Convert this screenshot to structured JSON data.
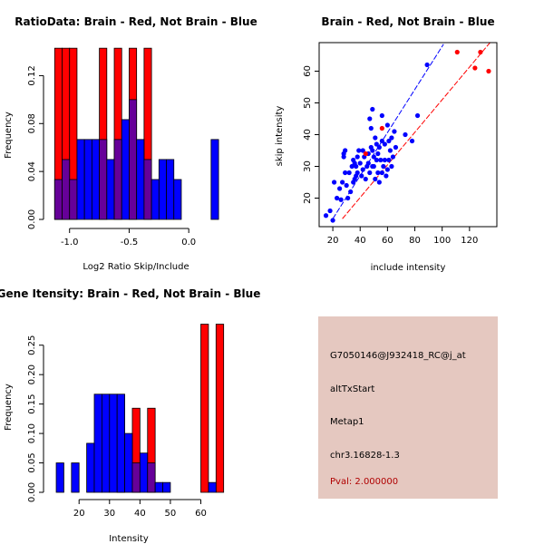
{
  "colors": {
    "red": "#ff0000",
    "blue": "#0000ff",
    "overlap": "#660099",
    "panel": "#e5c8c0",
    "pval": "#b00000"
  },
  "chart_data": [
    {
      "type": "histogram",
      "title": "RatioData: Brain - Red, Not Brain - Blue",
      "xlabel": "Log2 Ratio Skip/Include",
      "ylabel": "Frequency",
      "xlim": [
        -1.15,
        0.28
      ],
      "ylim": [
        0,
        0.14
      ],
      "xticks": [
        -1.0,
        -0.5,
        0.0
      ],
      "xtick_labels": [
        "-1.0",
        "-0.5",
        "0.0"
      ],
      "yticks": [
        0,
        0.04,
        0.08,
        0.12
      ],
      "ytick_labels": [
        "0.00",
        "0.04",
        "0.08",
        "0.12"
      ],
      "bin_width": 0.0625,
      "series": [
        {
          "name": "Brain",
          "color": "red",
          "bins": [
            {
              "x0": -1.125,
              "value": 0.1429
            },
            {
              "x0": -1.0625,
              "value": 0.1429
            },
            {
              "x0": -1.0,
              "value": 0.1429
            },
            {
              "x0": -0.75,
              "value": 0.1429
            },
            {
              "x0": -0.625,
              "value": 0.1429
            },
            {
              "x0": -0.5,
              "value": 0.1429
            },
            {
              "x0": -0.375,
              "value": 0.1429
            }
          ]
        },
        {
          "name": "Not Brain",
          "color": "blue",
          "bins": [
            {
              "x0": -1.125,
              "value": 0.0333
            },
            {
              "x0": -1.0625,
              "value": 0.05
            },
            {
              "x0": -1.0,
              "value": 0.0333
            },
            {
              "x0": -0.9375,
              "value": 0.0667
            },
            {
              "x0": -0.875,
              "value": 0.0667
            },
            {
              "x0": -0.8125,
              "value": 0.0667
            },
            {
              "x0": -0.75,
              "value": 0.0667
            },
            {
              "x0": -0.6875,
              "value": 0.05
            },
            {
              "x0": -0.625,
              "value": 0.0667
            },
            {
              "x0": -0.5625,
              "value": 0.0833
            },
            {
              "x0": -0.5,
              "value": 0.1
            },
            {
              "x0": -0.4375,
              "value": 0.0667
            },
            {
              "x0": -0.375,
              "value": 0.05
            },
            {
              "x0": -0.3125,
              "value": 0.0333
            },
            {
              "x0": -0.25,
              "value": 0.05
            },
            {
              "x0": -0.1875,
              "value": 0.05
            },
            {
              "x0": -0.125,
              "value": 0.0333
            },
            {
              "x0": 0.1875,
              "value": 0.0667
            }
          ]
        }
      ]
    },
    {
      "type": "scatter",
      "title": "Brain - Red, Not Brain - Blue",
      "xlabel": "include intensity",
      "ylabel": "skip intensity",
      "xlim": [
        10,
        140
      ],
      "ylim": [
        11,
        69
      ],
      "xticks": [
        20,
        40,
        60,
        80,
        100,
        120
      ],
      "yticks": [
        20,
        30,
        40,
        50,
        60
      ],
      "series": [
        {
          "name": "Not Brain",
          "color": "blue",
          "points": [
            [
              15,
              14.5
            ],
            [
              18,
              16
            ],
            [
              20,
              13
            ],
            [
              21,
              25
            ],
            [
              23,
              20
            ],
            [
              25,
              23
            ],
            [
              26,
              19.5
            ],
            [
              27,
              25
            ],
            [
              28,
              33
            ],
            [
              28,
              34
            ],
            [
              29,
              28
            ],
            [
              29,
              35
            ],
            [
              30,
              24
            ],
            [
              31,
              20
            ],
            [
              32,
              28
            ],
            [
              33,
              22
            ],
            [
              34,
              30
            ],
            [
              35,
              25
            ],
            [
              35,
              32
            ],
            [
              36,
              26
            ],
            [
              36,
              31
            ],
            [
              37,
              30
            ],
            [
              37,
              27
            ],
            [
              38,
              33
            ],
            [
              38,
              28
            ],
            [
              39,
              35
            ],
            [
              40,
              31
            ],
            [
              41,
              27
            ],
            [
              42,
              29
            ],
            [
              42,
              35
            ],
            [
              43,
              33
            ],
            [
              44,
              26
            ],
            [
              45,
              30
            ],
            [
              46,
              34
            ],
            [
              46,
              31
            ],
            [
              47,
              28
            ],
            [
              48,
              36
            ],
            [
              48,
              42
            ],
            [
              49,
              30
            ],
            [
              49,
              35
            ],
            [
              50,
              30
            ],
            [
              50,
              33
            ],
            [
              51,
              26
            ],
            [
              51,
              39
            ],
            [
              52,
              32
            ],
            [
              52,
              37
            ],
            [
              53,
              28
            ],
            [
              53,
              34
            ],
            [
              54,
              36
            ],
            [
              54,
              25
            ],
            [
              55,
              32
            ],
            [
              56,
              38
            ],
            [
              56,
              28
            ],
            [
              57,
              30
            ],
            [
              58,
              32
            ],
            [
              58,
              37
            ],
            [
              59,
              27
            ],
            [
              60,
              29
            ],
            [
              60,
              43
            ],
            [
              61,
              32
            ],
            [
              61,
              38
            ],
            [
              62,
              35
            ],
            [
              63,
              39
            ],
            [
              63,
              30
            ],
            [
              64,
              33
            ],
            [
              65,
              41
            ],
            [
              66,
              36
            ],
            [
              47,
              45
            ],
            [
              49,
              48
            ],
            [
              56,
              46
            ],
            [
              73,
              40
            ],
            [
              78,
              38
            ],
            [
              82,
              46
            ],
            [
              89,
              62
            ]
          ]
        },
        {
          "name": "Brain",
          "color": "red",
          "points": [
            [
              44,
              34
            ],
            [
              56,
              42
            ],
            [
              111,
              66
            ],
            [
              124,
              61
            ],
            [
              128,
              66
            ],
            [
              134,
              60
            ]
          ]
        }
      ],
      "fit_lines": [
        {
          "color": "blue",
          "from": [
            20,
            13.5
          ],
          "to": [
            101,
            68.5
          ]
        },
        {
          "color": "red",
          "from": [
            27,
            13.5
          ],
          "to": [
            135,
            69
          ]
        }
      ]
    },
    {
      "type": "histogram",
      "title": "Gene Itensity: Brain - Red, Not Brain - Blue",
      "xlabel": "Intensity",
      "ylabel": "Frequency",
      "xlim": [
        11,
        67
      ],
      "ylim": [
        0,
        0.285
      ],
      "xticks": [
        20,
        30,
        40,
        50,
        60
      ],
      "yticks": [
        0,
        0.05,
        0.1,
        0.15,
        0.2,
        0.25
      ],
      "ytick_labels": [
        "0.00",
        "0.05",
        "0.10",
        "0.15",
        "0.20",
        "0.25"
      ],
      "bin_width": 2.5,
      "series": [
        {
          "name": "Brain",
          "color": "red",
          "bins": [
            {
              "x0": 32.5,
              "value": 0.1429
            },
            {
              "x0": 37.5,
              "value": 0.1429
            },
            {
              "x0": 42.5,
              "value": 0.1429
            },
            {
              "x0": 60,
              "value": 0.2857
            },
            {
              "x0": 65,
              "value": 0.2857
            }
          ]
        },
        {
          "name": "Not Brain",
          "color": "blue",
          "bins": [
            {
              "x0": 12.5,
              "value": 0.05
            },
            {
              "x0": 17.5,
              "value": 0.05
            },
            {
              "x0": 22.5,
              "value": 0.0833
            },
            {
              "x0": 25,
              "value": 0.1667
            },
            {
              "x0": 27.5,
              "value": 0.1667
            },
            {
              "x0": 30,
              "value": 0.1667
            },
            {
              "x0": 32.5,
              "value": 0.1667
            },
            {
              "x0": 35,
              "value": 0.1
            },
            {
              "x0": 37.5,
              "value": 0.05
            },
            {
              "x0": 40,
              "value": 0.0667
            },
            {
              "x0": 42.5,
              "value": 0.05
            },
            {
              "x0": 45,
              "value": 0.0167
            },
            {
              "x0": 47.5,
              "value": 0.0167
            },
            {
              "x0": 62.5,
              "value": 0.0167
            }
          ]
        }
      ]
    }
  ],
  "info": {
    "probe_id": "G7050146@J932418_RC@j_at",
    "event_type": "altTxStart",
    "gene": "Metap1",
    "location": "chr3.16828-1.3",
    "pval": "Pval: 2.000000"
  }
}
